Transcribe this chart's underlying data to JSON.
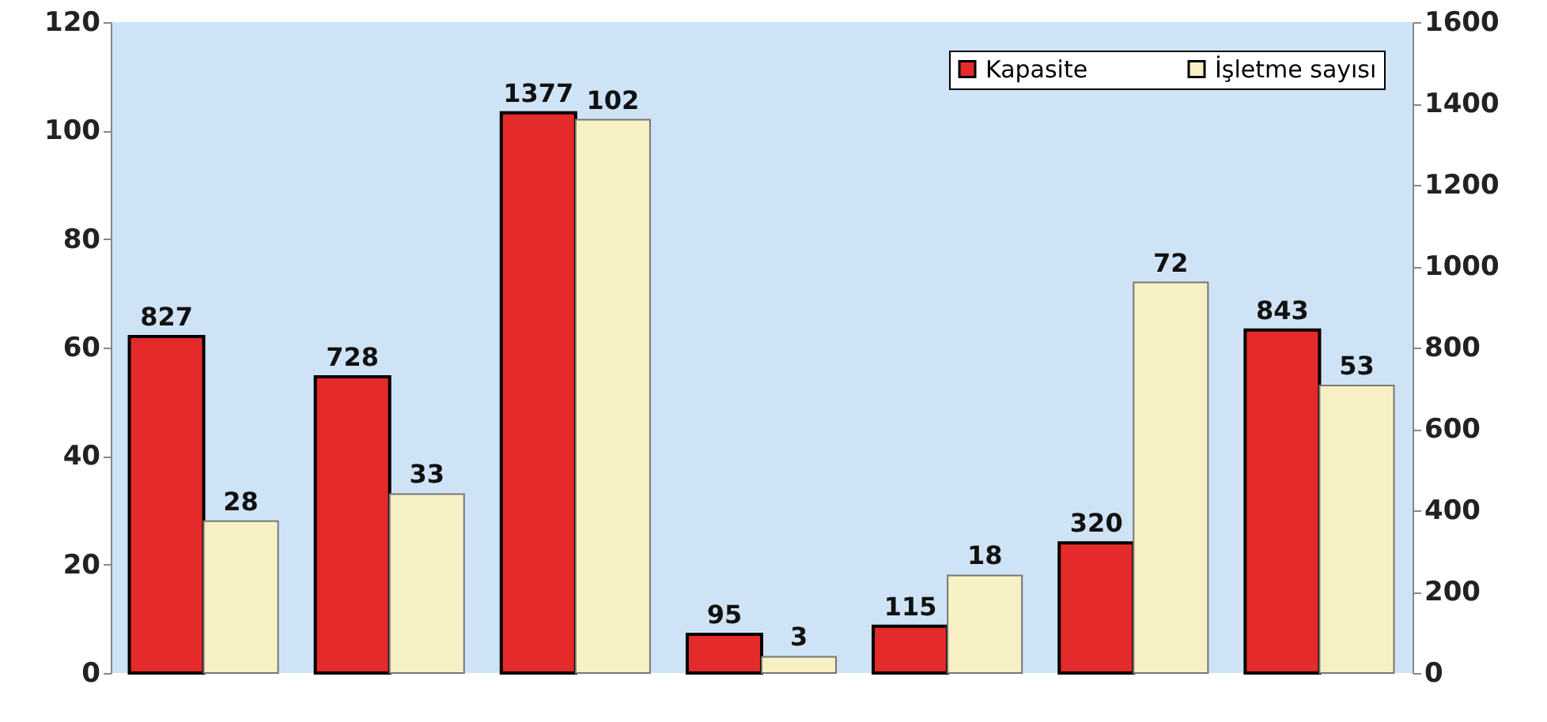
{
  "chart_data": {
    "type": "bar",
    "categories": [
      null,
      null,
      null,
      null,
      null,
      null,
      null
    ],
    "series": [
      {
        "name": "Kapasite",
        "color": "#e42a2a",
        "axis": "y2",
        "values": [
          827,
          728,
          1377,
          95,
          115,
          320,
          843
        ]
      },
      {
        "name": "İşletme sayısı",
        "color": "#f7f0c4",
        "values": [
          28,
          33,
          102,
          3,
          18,
          72,
          53
        ]
      }
    ],
    "ylim": [
      0,
      120
    ],
    "yticks": [
      0,
      20,
      40,
      60,
      80,
      100,
      120
    ],
    "y2lim": [
      0,
      1600
    ],
    "y2ticks": [
      0,
      200,
      400,
      600,
      800,
      1000,
      1200,
      1400,
      1600
    ],
    "data_labels": true,
    "legend": "top right"
  }
}
